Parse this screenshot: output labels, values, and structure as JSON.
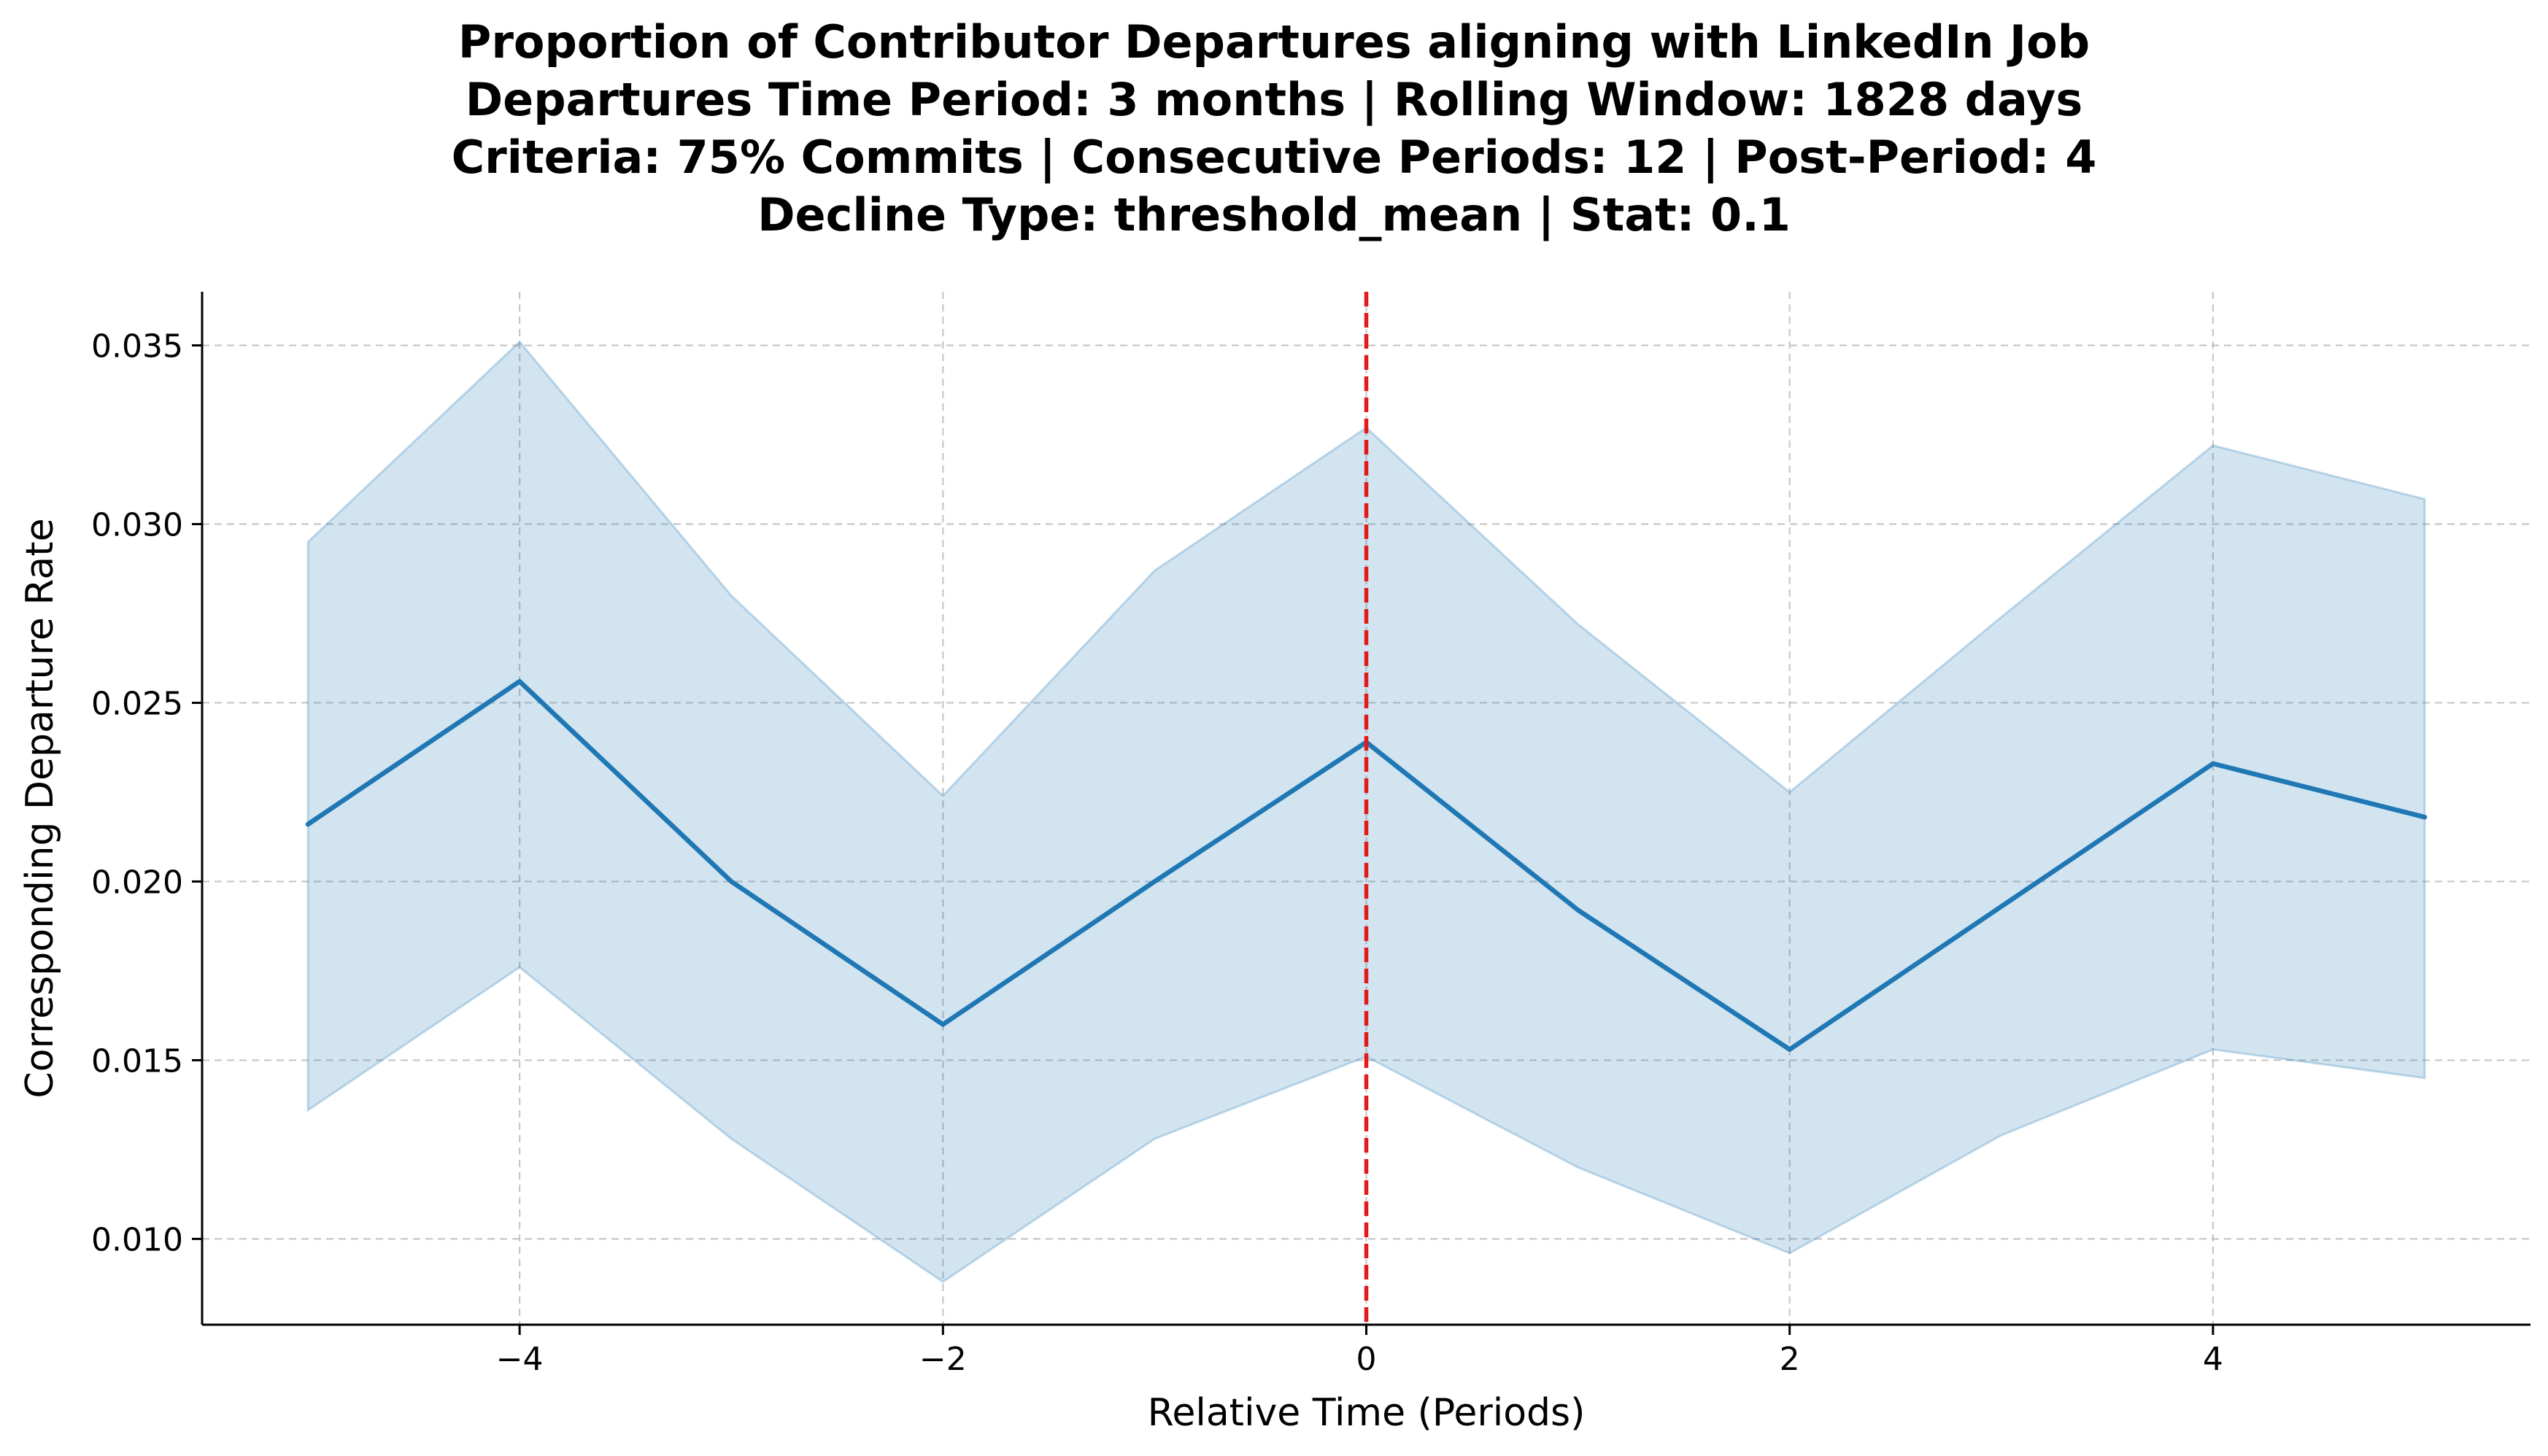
{
  "chart_data": {
    "type": "line",
    "title": [
      "Proportion of Contributor Departures aligning with LinkedIn Job",
      "Departures Time Period: 3 months | Rolling Window: 1828 days",
      "Criteria: 75% Commits | Consecutive Periods: 12 | Post-Period: 4",
      "Decline Type: threshold_mean | Stat: 0.1"
    ],
    "xlabel": "Relative Time (Periods)",
    "ylabel": "Corresponding Departure Rate",
    "x": [
      -5,
      -4,
      -3,
      -2,
      -1,
      0,
      1,
      2,
      3,
      4,
      5
    ],
    "series": [
      {
        "values": [
          0.0216,
          0.0256,
          0.02,
          0.016,
          0.02,
          0.0239,
          0.0192,
          0.0153,
          0.0193,
          0.0233,
          0.0218
        ],
        "upper": [
          0.0295,
          0.0351,
          0.028,
          0.0224,
          0.0287,
          0.0327,
          0.0272,
          0.0225,
          0.0274,
          0.0322,
          0.0307
        ],
        "lower": [
          0.0136,
          0.0176,
          0.0128,
          0.0088,
          0.0128,
          0.0151,
          0.012,
          0.0096,
          0.0129,
          0.0153,
          0.0145
        ],
        "color": "#1f77b4",
        "band_color": "#1f77b4"
      }
    ],
    "vline": {
      "x": 0,
      "color": "#e31a1c"
    },
    "xticks": [
      -4,
      -2,
      0,
      2,
      4
    ],
    "xtick_labels": [
      "−4",
      "−2",
      "0",
      "2",
      "4"
    ],
    "yticks": [
      0.01,
      0.015,
      0.02,
      0.025,
      0.03,
      0.035
    ],
    "ytick_labels": [
      "0.010",
      "0.015",
      "0.020",
      "0.025",
      "0.030",
      "0.035"
    ],
    "xlim": [
      -5.5,
      5.5
    ],
    "ylim": [
      0.0076,
      0.0365
    ],
    "grid": true
  }
}
